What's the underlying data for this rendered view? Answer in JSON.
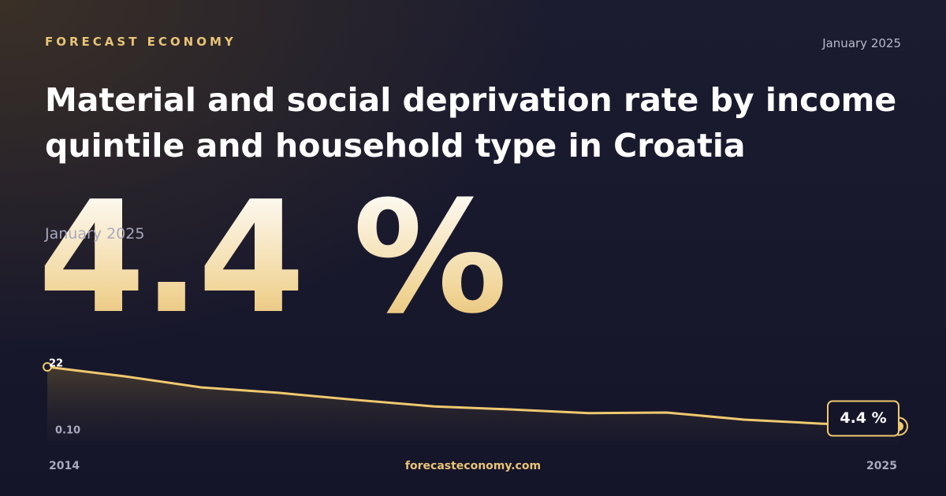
{
  "brand": "FORECAST ECONOMY",
  "date": "January 2025",
  "headline": "4.4 %",
  "site": "forecasteconomy.com",
  "chart_data": {
    "type": "area",
    "title": "Material and social deprivation rate by income quintile and household type in Croatia",
    "x": [
      2014,
      2015,
      2016,
      2017,
      2018,
      2019,
      2020,
      2021,
      2022,
      2023,
      2024,
      2025
    ],
    "values": [
      22,
      19.2,
      15.9,
      14.3,
      12.2,
      10.3,
      9.4,
      8.3,
      8.5,
      6.4,
      5.2,
      4.4
    ],
    "value_labels": [
      null,
      null,
      null,
      null,
      null,
      null,
      null,
      null,
      null,
      null,
      null,
      "4.4 %"
    ],
    "color": "#f0c96e",
    "xlim": [
      2014,
      2025
    ],
    "xticks": [
      2014,
      2025
    ],
    "ylim": [
      0.1,
      22
    ],
    "yticks": [
      22,
      {
        "value": 0.1,
        "label": "0.10"
      }
    ],
    "grid": false
  }
}
